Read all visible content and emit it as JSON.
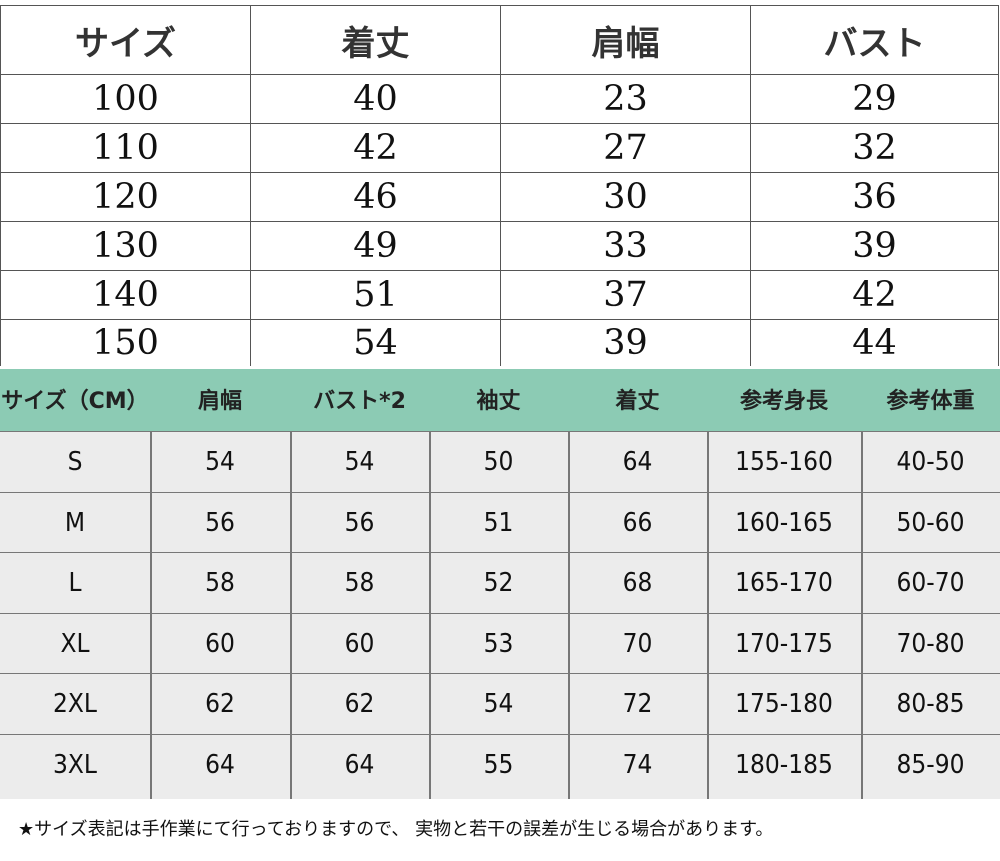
{
  "kids_table": {
    "headers": [
      "サイズ",
      "着丈",
      "肩幅",
      "バスト"
    ],
    "rows": [
      [
        "100",
        "40",
        "23",
        "29"
      ],
      [
        "110",
        "42",
        "27",
        "32"
      ],
      [
        "120",
        "46",
        "30",
        "36"
      ],
      [
        "130",
        "49",
        "33",
        "39"
      ],
      [
        "140",
        "51",
        "37",
        "42"
      ],
      [
        "150",
        "54",
        "39",
        "44"
      ]
    ]
  },
  "adult_table": {
    "header_color": "#8ccbb4",
    "headers": [
      "サイズ（CM）",
      "肩幅",
      "バスト*2",
      "袖丈",
      "着丈",
      "参考身長",
      "参考体重"
    ],
    "rows": [
      [
        "S",
        "54",
        "54",
        "50",
        "64",
        "155-160",
        "40-50"
      ],
      [
        "M",
        "56",
        "56",
        "51",
        "66",
        "160-165",
        "50-60"
      ],
      [
        "L",
        "58",
        "58",
        "52",
        "68",
        "165-170",
        "60-70"
      ],
      [
        "XL",
        "60",
        "60",
        "53",
        "70",
        "170-175",
        "70-80"
      ],
      [
        "2XL",
        "62",
        "62",
        "54",
        "72",
        "175-180",
        "80-85"
      ],
      [
        "3XL",
        "64",
        "64",
        "55",
        "74",
        "180-185",
        "85-90"
      ]
    ]
  },
  "note": "★サイズ表記は手作業にて行っておりますので、 実物と若干の誤差が生じる場合があります。"
}
